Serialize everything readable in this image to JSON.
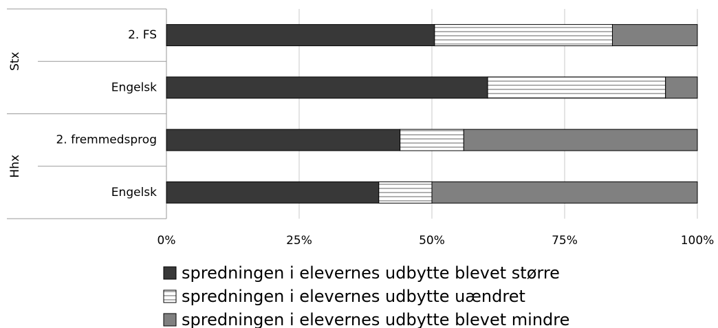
{
  "chart_data": {
    "type": "bar",
    "orientation": "horizontal",
    "stacked": true,
    "groups": [
      {
        "name": "Stx",
        "categories": [
          "2. FS",
          "Engelsk"
        ]
      },
      {
        "name": "Hhx",
        "categories": [
          "2. fremmedsprog",
          "Engelsk"
        ]
      }
    ],
    "series": [
      {
        "name": "spredningen i elevernes udbytte blevet større",
        "color": "#383838",
        "values": [
          50.5,
          60.5,
          44,
          40
        ]
      },
      {
        "name": "spredningen i elevernes udbytte uændret",
        "color": "#ffffff",
        "pattern": "horizontal-stripes",
        "values": [
          33.5,
          33.5,
          12,
          10
        ]
      },
      {
        "name": "spredningen i elevernes udbytte blevet mindre",
        "color": "#808080",
        "values": [
          16,
          6,
          44,
          50
        ]
      }
    ],
    "xlim": [
      0,
      100
    ],
    "xticks": [
      {
        "value": 0,
        "label": "0%"
      },
      {
        "value": 25,
        "label": "25%"
      },
      {
        "value": 50,
        "label": "50%"
      },
      {
        "value": 75,
        "label": "75%"
      },
      {
        "value": 100,
        "label": "100%"
      }
    ],
    "grid": true,
    "legend": "bottom"
  }
}
